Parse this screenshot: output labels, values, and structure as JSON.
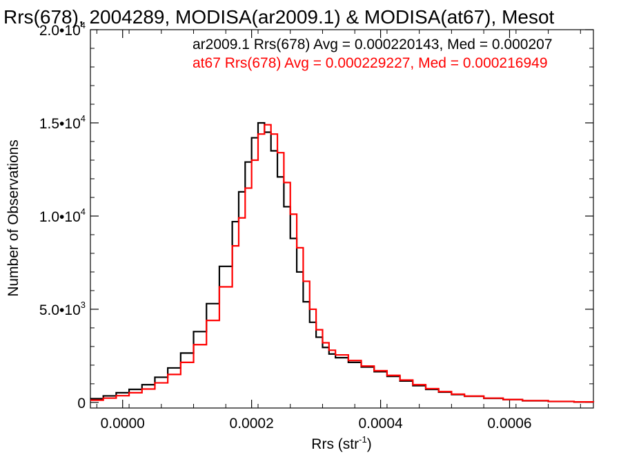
{
  "chart_data": {
    "type": "line",
    "title": "Rrs(678), 2004289, MODISA(ar2009.1) & MODISA(at67), Mesot",
    "xlabel_main": "Rrs (str",
    "xlabel_exp": "-1",
    "xlabel_close": ")",
    "ylabel": "Number of Observations",
    "xlim": [
      -5e-05,
      0.00073
    ],
    "ylim": [
      -300,
      20000
    ],
    "x_ticks": [
      {
        "value": 0.0,
        "label": "0.0000"
      },
      {
        "value": 0.0002,
        "label": "0.0002"
      },
      {
        "value": 0.0004,
        "label": "0.0004"
      },
      {
        "value": 0.0006,
        "label": "0.0006"
      }
    ],
    "y_ticks": [
      {
        "value": 0,
        "mant": "0",
        "exp": ""
      },
      {
        "value": 5000,
        "mant": "5.0•10",
        "exp": "3"
      },
      {
        "value": 10000,
        "mant": "1.0•10",
        "exp": "4"
      },
      {
        "value": 15000,
        "mant": "1.5•10",
        "exp": "4"
      },
      {
        "value": 20000,
        "mant": "2.0•10",
        "exp": "4"
      }
    ],
    "legend": [
      {
        "text": "ar2009.1 Rrs(678) Avg = 0.000220143, Med = 0.000207",
        "color": "#000000"
      },
      {
        "text": "at67 Rrs(678) Avg = 0.000229227, Med = 0.000216949",
        "color": "#ff0000"
      }
    ],
    "series": [
      {
        "color": "#000000",
        "x": [
          -5e-05,
          -3e-05,
          -1e-05,
          1e-05,
          3e-05,
          5e-05,
          7e-05,
          9e-05,
          0.00011,
          0.00013,
          0.00015,
          0.00017,
          0.00018,
          0.00019,
          0.0002,
          0.00021,
          0.00022,
          0.00023,
          0.00024,
          0.00025,
          0.00026,
          0.00027,
          0.00028,
          0.00029,
          0.0003,
          0.00031,
          0.00032,
          0.00033,
          0.00035,
          0.00037,
          0.00039,
          0.00041,
          0.00043,
          0.00045,
          0.00047,
          0.00049,
          0.00051,
          0.00053,
          0.00056,
          0.00059,
          0.00062,
          0.00066,
          0.0007,
          0.00073
        ],
        "y": [
          200,
          350,
          520,
          700,
          950,
          1350,
          1850,
          2650,
          3800,
          5300,
          7300,
          9700,
          11300,
          12900,
          14200,
          15000,
          14500,
          13500,
          12100,
          10500,
          8800,
          7000,
          5400,
          4300,
          3500,
          2950,
          2600,
          2400,
          2150,
          1900,
          1650,
          1400,
          1150,
          900,
          700,
          550,
          420,
          330,
          220,
          150,
          90,
          50,
          25,
          15
        ]
      },
      {
        "color": "#ff0000",
        "x": [
          -5e-05,
          -3e-05,
          -1e-05,
          1e-05,
          3e-05,
          5e-05,
          7e-05,
          9e-05,
          0.00011,
          0.00013,
          0.00015,
          0.00017,
          0.00018,
          0.00019,
          0.0002,
          0.00021,
          0.00022,
          0.00023,
          0.00024,
          0.00025,
          0.00026,
          0.00027,
          0.00028,
          0.00029,
          0.0003,
          0.00031,
          0.00032,
          0.00033,
          0.00035,
          0.00037,
          0.00039,
          0.00041,
          0.00043,
          0.00045,
          0.00047,
          0.00049,
          0.00051,
          0.00053,
          0.00056,
          0.00059,
          0.00062,
          0.00066,
          0.0007,
          0.00073
        ],
        "y": [
          120,
          230,
          360,
          520,
          720,
          1050,
          1500,
          2150,
          3100,
          4400,
          6200,
          8400,
          9900,
          11500,
          13000,
          14400,
          14900,
          14400,
          13400,
          11800,
          10100,
          8300,
          6500,
          5000,
          3900,
          3200,
          2800,
          2550,
          2250,
          1950,
          1700,
          1450,
          1200,
          950,
          740,
          580,
          440,
          340,
          230,
          155,
          95,
          55,
          28,
          15
        ]
      }
    ]
  }
}
